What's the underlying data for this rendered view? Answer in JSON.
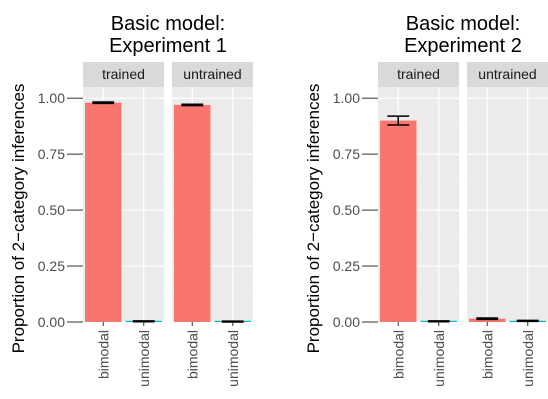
{
  "chart_data": [
    {
      "type": "bar",
      "title": "Basic model:\nExperiment 1",
      "ylabel": "Proportion of 2−category inferences",
      "xlabel": "",
      "ylim": [
        0,
        1.05
      ],
      "yticks": [
        "0.00",
        "0.25",
        "0.50",
        "0.75",
        "1.00"
      ],
      "ytick_values": [
        0,
        0.25,
        0.5,
        0.75,
        1.0
      ],
      "grid": true,
      "categories": [
        "bimodal",
        "unimodal"
      ],
      "facets": [
        {
          "label": "trained",
          "values": [
            0.98,
            0.003
          ],
          "err": [
            0.003,
            0.002
          ]
        },
        {
          "label": "untrained",
          "values": [
            0.97,
            0.002
          ],
          "err": [
            0.003,
            0.002
          ]
        }
      ]
    },
    {
      "type": "bar",
      "title": "Basic model:\nExperiment 2",
      "ylabel": "Proportion of 2−category inferences",
      "xlabel": "",
      "ylim": [
        0,
        1.05
      ],
      "yticks": [
        "0.00",
        "0.25",
        "0.50",
        "0.75",
        "1.00"
      ],
      "ytick_values": [
        0,
        0.25,
        0.5,
        0.75,
        1.0
      ],
      "grid": true,
      "categories": [
        "bimodal",
        "unimodal"
      ],
      "facets": [
        {
          "label": "trained",
          "values": [
            0.9,
            0.003
          ],
          "err": [
            0.02,
            0.002
          ]
        },
        {
          "label": "untrained",
          "values": [
            0.015,
            0.005
          ],
          "err": [
            0.003,
            0.002
          ]
        }
      ]
    }
  ],
  "colors": {
    "bimodal": "#F8766D",
    "unimodal": "#00BFC4",
    "panel_bg": "#EBEBEB",
    "strip_bg": "#D9D9D9",
    "grid_major": "#FFFFFF",
    "grid_minor": "#F2F2F2",
    "tick_label": "#4D4D4D",
    "title": "#000000"
  }
}
